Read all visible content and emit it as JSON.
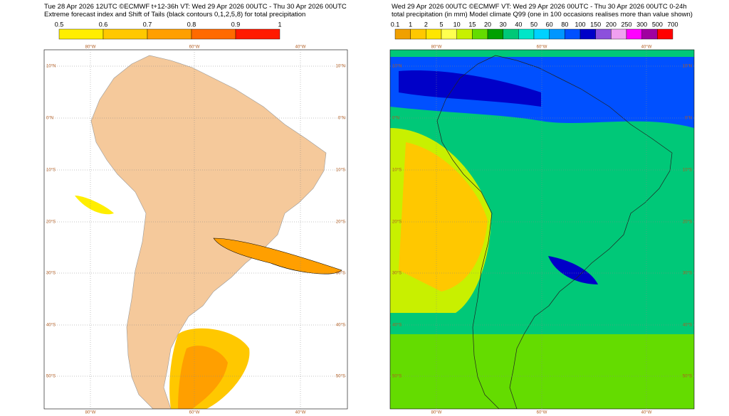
{
  "left_panel": {
    "header": [
      "Tue 28 Apr 2026 12UTC ©ECMWF t+12-36h  VT: Wed 29 Apr 2026 00UTC - Thu 30 Apr 2026 00UTC",
      "Extreme forecast index and Shift of Tails (black contours 0,1,2,5,8) for total precipitation"
    ],
    "colorbar": {
      "labels": [
        "0.5",
        "0.6",
        "0.7",
        "0.8",
        "0.9",
        "1"
      ],
      "colors": [
        "#ffee00",
        "#ffc800",
        "#ff9f00",
        "#ff6a00",
        "#ff1a00"
      ]
    },
    "lat_labels": [
      "10°N",
      "0°N",
      "10°S",
      "20°S",
      "30°S",
      "40°S",
      "50°S"
    ],
    "lon_labels": [
      "80°W",
      "60°W",
      "40°W"
    ]
  },
  "right_panel": {
    "header": [
      "Wed 29 Apr 2026 00UTC ©ECMWF VT: Wed 29 Apr 2026 00UTC - Thu 30 Apr 2026 00UTC   0-24h",
      "total precipitation (in mm)  Model climate Q99 (one in 100 occasions realises more than value shown)"
    ],
    "colorbar": {
      "labels": [
        "0.1",
        "1",
        "2",
        "5",
        "10",
        "15",
        "20",
        "30",
        "40",
        "50",
        "60",
        "80",
        "100",
        "150",
        "200",
        "250",
        "300",
        "500",
        "700"
      ],
      "colors": [
        "#f0a000",
        "#ffc800",
        "#ffe600",
        "#ffff50",
        "#c8f000",
        "#64dc00",
        "#00a000",
        "#00c878",
        "#00e6c8",
        "#00d2ff",
        "#0096ff",
        "#0050ff",
        "#0000c8",
        "#8c50dc",
        "#f0a0f0",
        "#ff00ff",
        "#a000a0",
        "#ff0000"
      ]
    },
    "lat_labels": [
      "10°N",
      "0°N",
      "10°S",
      "20°S",
      "30°S",
      "40°S",
      "50°S"
    ],
    "lon_labels": [
      "80°W",
      "60°W",
      "40°W"
    ]
  }
}
